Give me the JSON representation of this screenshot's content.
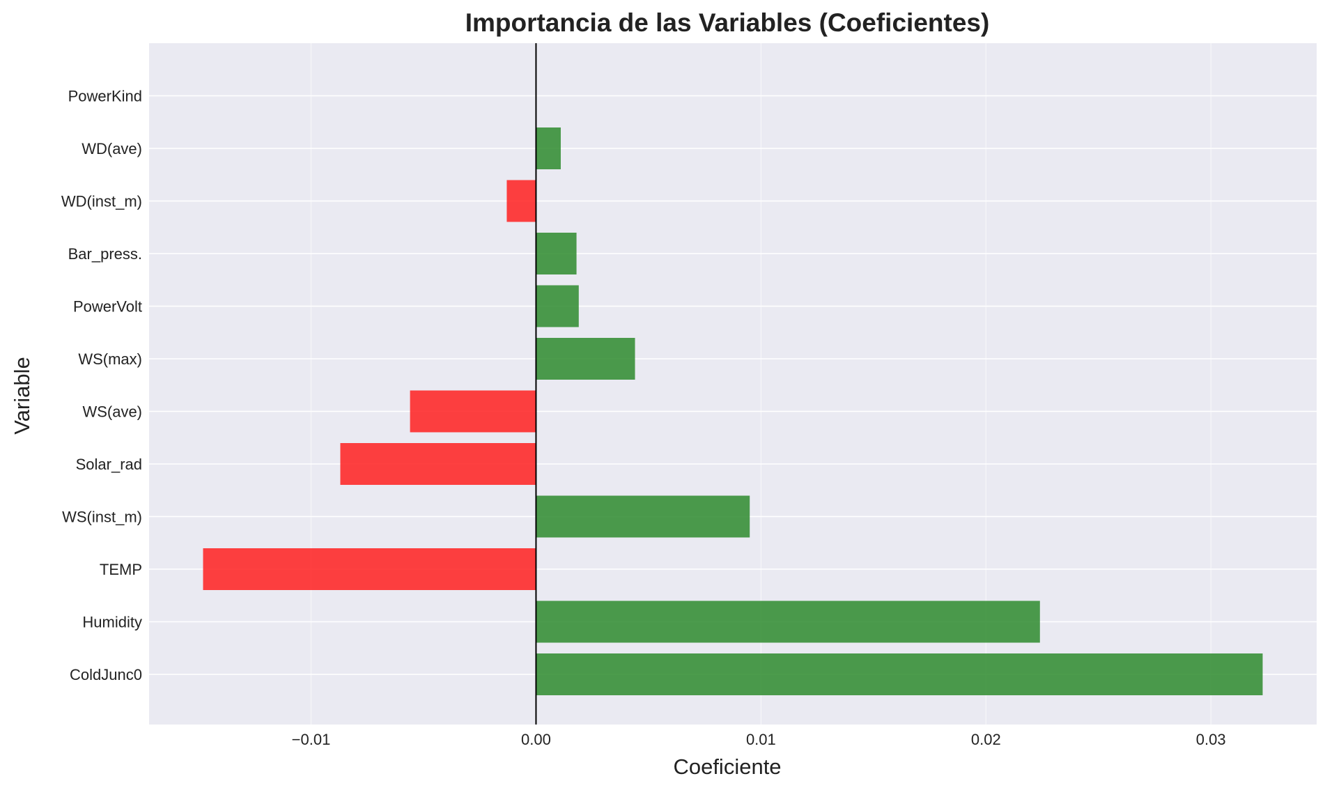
{
  "chart_data": {
    "type": "bar",
    "orientation": "horizontal",
    "title": "Importancia de las Variables (Coeficientes)",
    "xlabel": "Coeficiente",
    "ylabel": "Variable",
    "categories": [
      "ColdJunc0",
      "Humidity",
      "TEMP",
      "WS(inst_m)",
      "Solar_rad",
      "WS(ave)",
      "WS(max)",
      "PowerVolt",
      "Bar_press.",
      "WD(inst_m)",
      "WD(ave)",
      "PowerKind"
    ],
    "values": [
      0.0323,
      0.0224,
      -0.0148,
      0.0095,
      -0.0087,
      -0.0056,
      0.0044,
      0.0019,
      0.0018,
      -0.0013,
      0.0011,
      0.0
    ],
    "xlim": [
      -0.0172,
      0.0347
    ],
    "xticks": [
      -0.01,
      0.0,
      0.01,
      0.02,
      0.03
    ],
    "xtick_labels": [
      "−0.01",
      "0.00",
      "0.01",
      "0.02",
      "0.03"
    ],
    "grid": true,
    "colors": {
      "positive": "#2e8b2e",
      "negative": "#ff2020",
      "plot_background": "#eaeaf2",
      "grid": "#ffffff",
      "zero_line": "#000000"
    }
  }
}
